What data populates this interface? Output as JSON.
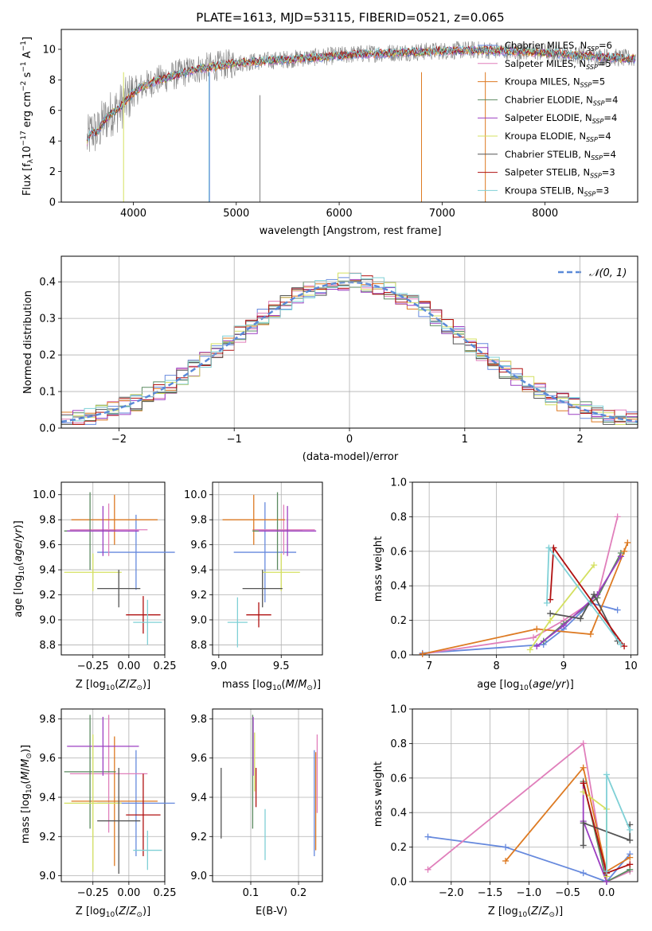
{
  "chart_data": [
    {
      "type": "line",
      "id": "spectrum",
      "title": "PLATE=1613, MJD=53115, FIBERID=0521, z=0.065",
      "xlabel": "wavelength [Angstrom, rest frame]",
      "ylabel": "Flux [fλ10⁻¹⁷ erg cm⁻² s⁻¹ A⁻¹]",
      "xlim": [
        3300,
        8900
      ],
      "ylim": [
        0,
        11.3
      ],
      "xticks": [
        4000,
        5000,
        6000,
        7000,
        8000
      ],
      "yticks": [
        0,
        2,
        4,
        6,
        8,
        10
      ],
      "grid": false,
      "legend_position": "right",
      "legend": [
        "Chabrier MILES, N_SSP=6",
        "Salpeter MILES, N_SSP=5",
        "Kroupa MILES, N_SSP=5",
        "Chabrier ELODIE, N_SSP=4",
        "Salpeter ELODIE, N_SSP=4",
        "Kroupa ELODIE, N_SSP=4",
        "Chabrier STELIB, N_SSP=4",
        "Salpeter STELIB, N_SSP=3",
        "Kroupa STELIB, N_SSP=3"
      ],
      "observed_trend": {
        "x": [
          3550,
          3600,
          3650,
          3700,
          3750,
          3800,
          3850,
          3900,
          3950,
          4000,
          4100,
          4200,
          4300,
          4400,
          4500,
          4600,
          4700,
          4800,
          4900,
          5000,
          5200,
          5400,
          5600,
          5800,
          6000,
          6200,
          6400,
          6600,
          6800,
          7000,
          7200,
          7400,
          7600,
          7800,
          8000,
          8200,
          8400,
          8600,
          8800
        ],
        "y": [
          4.0,
          4.7,
          4.5,
          5.2,
          5.6,
          5.9,
          6.1,
          6.4,
          6.8,
          7.2,
          7.6,
          7.9,
          8.1,
          8.3,
          8.5,
          8.7,
          8.8,
          8.9,
          9.0,
          9.1,
          9.2,
          9.3,
          9.4,
          9.5,
          9.6,
          9.7,
          9.75,
          9.8,
          9.85,
          9.9,
          9.95,
          9.95,
          9.9,
          9.85,
          9.8,
          9.7,
          9.6,
          9.5,
          9.4
        ]
      }
    },
    {
      "type": "histogram",
      "id": "residuals",
      "xlabel": "(data-model)/error",
      "ylabel": "Normed distribution",
      "xlim": [
        -2.5,
        2.5
      ],
      "ylim": [
        0,
        0.47
      ],
      "xticks": [
        -2,
        -1,
        0,
        1,
        2
      ],
      "yticks": [
        0.0,
        0.1,
        0.2,
        0.3,
        0.4
      ],
      "grid": true,
      "legend_position": "top-right",
      "reference_curve": "𝒩(0, 1)",
      "bin_width": 0.1,
      "approx_bin_heights": [
        0.02,
        0.025,
        0.03,
        0.035,
        0.045,
        0.05,
        0.06,
        0.07,
        0.08,
        0.09,
        0.1,
        0.12,
        0.13,
        0.15,
        0.17,
        0.19,
        0.2,
        0.22,
        0.24,
        0.26,
        0.28,
        0.3,
        0.32,
        0.34,
        0.36,
        0.37,
        0.39,
        0.4,
        0.41,
        0.41,
        0.4,
        0.4,
        0.39,
        0.38,
        0.37,
        0.35,
        0.33,
        0.31,
        0.29,
        0.27,
        0.24,
        0.22,
        0.2,
        0.18,
        0.16,
        0.14,
        0.12,
        0.1,
        0.08,
        0.07
      ]
    },
    {
      "type": "scatter",
      "id": "age-vs-Z",
      "xlabel": "Z [log₁₀(Z/Z⊙)]",
      "ylabel": "age  [log₁₀(age/yr)]",
      "xlim": [
        -0.47,
        0.25
      ],
      "ylim": [
        8.72,
        10.1
      ],
      "xticks": [
        -0.25,
        0.0,
        0.25
      ],
      "yticks": [
        8.8,
        9.0,
        9.2,
        9.4,
        9.6,
        9.8,
        10.0
      ],
      "grid": true,
      "points": [
        {
          "x": 0.05,
          "xerr": 0.27,
          "y": 9.54,
          "yerr": 0.3,
          "c": "#6689dd"
        },
        {
          "x": -0.14,
          "xerr": 0.27,
          "y": 9.72,
          "yerr": 0.21,
          "c": "#e07fbb"
        },
        {
          "x": -0.1,
          "xerr": 0.3,
          "y": 9.8,
          "yerr": 0.2,
          "c": "#dd7a22"
        },
        {
          "x": -0.27,
          "xerr": 0.18,
          "y": 9.71,
          "yerr": 0.31,
          "c": "#5b8a60"
        },
        {
          "x": -0.18,
          "xerr": 0.25,
          "y": 9.71,
          "yerr": 0.2,
          "c": "#9c3fc2"
        },
        {
          "x": -0.25,
          "xerr": 0.2,
          "y": 9.38,
          "yerr": 0.15,
          "c": "#d4e060"
        },
        {
          "x": -0.07,
          "xerr": 0.15,
          "y": 9.25,
          "yerr": 0.15,
          "c": "#555555"
        },
        {
          "x": 0.1,
          "xerr": 0.12,
          "y": 9.04,
          "yerr": 0.15,
          "c": "#b01010"
        },
        {
          "x": 0.13,
          "xerr": 0.1,
          "y": 8.98,
          "yerr": 0.18,
          "c": "#7fd0d6"
        }
      ]
    },
    {
      "type": "scatter",
      "id": "age-vs-mass",
      "xlabel": "mass [log₁₀(M/M⊙)]",
      "ylabel": "",
      "xlim": [
        8.95,
        9.83
      ],
      "ylim": [
        8.72,
        10.1
      ],
      "xticks": [
        9.0,
        9.5
      ],
      "yticks": [
        8.8,
        9.0,
        9.2,
        9.4,
        9.6,
        9.8,
        10.0
      ],
      "grid": true,
      "points": [
        {
          "x": 9.37,
          "xerr": 0.25,
          "y": 9.54,
          "yerr": 0.4,
          "c": "#6689dd"
        },
        {
          "x": 9.52,
          "xerr": 0.25,
          "y": 9.72,
          "yerr": 0.2,
          "c": "#e07fbb"
        },
        {
          "x": 9.28,
          "xerr": 0.25,
          "y": 9.8,
          "yerr": 0.2,
          "c": "#dd7a22"
        },
        {
          "x": 9.47,
          "xerr": 0.2,
          "y": 9.71,
          "yerr": 0.31,
          "c": "#5b8a60"
        },
        {
          "x": 9.55,
          "xerr": 0.23,
          "y": 9.71,
          "yerr": 0.2,
          "c": "#9c3fc2"
        },
        {
          "x": 9.5,
          "xerr": 0.15,
          "y": 9.38,
          "yerr": 0.15,
          "c": "#d4e060"
        },
        {
          "x": 9.35,
          "xerr": 0.16,
          "y": 9.25,
          "yerr": 0.15,
          "c": "#555555"
        },
        {
          "x": 9.32,
          "xerr": 0.1,
          "y": 9.04,
          "yerr": 0.1,
          "c": "#b01010"
        },
        {
          "x": 9.15,
          "xerr": 0.08,
          "y": 8.98,
          "yerr": 0.2,
          "c": "#7fd0d6"
        }
      ]
    },
    {
      "type": "line",
      "id": "mass-weight-vs-age",
      "xlabel": "age  [log₁₀(age/yr)]",
      "ylabel": "mass weight",
      "xlim": [
        6.75,
        10.1
      ],
      "ylim": [
        0,
        1.0
      ],
      "xticks": [
        7,
        8,
        9,
        10
      ],
      "yticks": [
        0.0,
        0.2,
        0.4,
        0.6,
        0.8,
        1.0
      ],
      "grid": true,
      "series": [
        {
          "c": "#6689dd",
          "x": [
            6.9,
            8.7,
            9.0,
            9.4,
            9.8
          ],
          "y": [
            0.01,
            0.06,
            0.15,
            0.3,
            0.26
          ]
        },
        {
          "c": "#e07fbb",
          "x": [
            6.9,
            8.55,
            9.0,
            9.5,
            9.8
          ],
          "y": [
            0.005,
            0.1,
            0.2,
            0.33,
            0.8
          ]
        },
        {
          "c": "#dd7a22",
          "x": [
            6.9,
            8.6,
            9.4,
            9.9,
            9.95
          ],
          "y": [
            0.005,
            0.15,
            0.12,
            0.6,
            0.65
          ]
        },
        {
          "c": "#5b8a60",
          "x": [
            8.7,
            9.0,
            9.5,
            9.85
          ],
          "y": [
            0.08,
            0.18,
            0.33,
            0.59
          ]
        },
        {
          "c": "#9c3fc2",
          "x": [
            8.6,
            9.0,
            9.5,
            9.85
          ],
          "y": [
            0.05,
            0.17,
            0.35,
            0.57
          ]
        },
        {
          "c": "#d4e060",
          "x": [
            8.5,
            8.8,
            9.45
          ],
          "y": [
            0.03,
            0.2,
            0.52
          ]
        },
        {
          "c": "#555555",
          "x": [
            8.8,
            9.25,
            9.45,
            9.8
          ],
          "y": [
            0.24,
            0.21,
            0.35,
            0.08
          ]
        },
        {
          "c": "#b01010",
          "x": [
            8.8,
            8.85,
            9.9
          ],
          "y": [
            0.32,
            0.62,
            0.05
          ]
        },
        {
          "c": "#7fd0d6",
          "x": [
            8.75,
            8.78,
            9.85
          ],
          "y": [
            0.3,
            0.62,
            0.06
          ]
        }
      ]
    },
    {
      "type": "scatter",
      "id": "mass-vs-Z",
      "xlabel": "Z [log₁₀(Z/Z⊙)]",
      "ylabel": "mass [log₁₀(M/M⊙)]",
      "xlim": [
        -0.47,
        0.25
      ],
      "ylim": [
        8.97,
        9.85
      ],
      "xticks": [
        -0.25,
        0.0,
        0.25
      ],
      "yticks": [
        9.0,
        9.2,
        9.4,
        9.6,
        9.8
      ],
      "grid": true,
      "points": [
        {
          "x": 0.05,
          "xerr": 0.27,
          "y": 9.37,
          "yerr": 0.27,
          "c": "#6689dd"
        },
        {
          "x": -0.14,
          "xerr": 0.27,
          "y": 9.52,
          "yerr": 0.3,
          "c": "#e07fbb"
        },
        {
          "x": -0.1,
          "xerr": 0.3,
          "y": 9.38,
          "yerr": 0.33,
          "c": "#dd7a22"
        },
        {
          "x": -0.27,
          "xerr": 0.18,
          "y": 9.53,
          "yerr": 0.29,
          "c": "#5b8a60"
        },
        {
          "x": -0.18,
          "xerr": 0.25,
          "y": 9.66,
          "yerr": 0.15,
          "c": "#9c3fc2"
        },
        {
          "x": -0.25,
          "xerr": 0.2,
          "y": 9.37,
          "yerr": 0.35,
          "c": "#d4e060"
        },
        {
          "x": -0.07,
          "xerr": 0.15,
          "y": 9.28,
          "yerr": 0.27,
          "c": "#555555"
        },
        {
          "x": 0.1,
          "xerr": 0.12,
          "y": 9.31,
          "yerr": 0.21,
          "c": "#b01010"
        },
        {
          "x": 0.13,
          "xerr": 0.1,
          "y": 9.13,
          "yerr": 0.1,
          "c": "#7fd0d6"
        }
      ]
    },
    {
      "type": "scatter",
      "id": "mass-vs-ebv",
      "xlabel": "E(B-V)",
      "ylabel": "",
      "xlim": [
        0.02,
        0.25
      ],
      "ylim": [
        8.97,
        9.85
      ],
      "xticks": [
        0.1,
        0.2
      ],
      "yticks": [
        9.0,
        9.2,
        9.4,
        9.6,
        9.8
      ],
      "grid": true,
      "points": [
        {
          "x": 0.233,
          "y": 9.37,
          "yerr": 0.27,
          "c": "#6689dd"
        },
        {
          "x": 0.239,
          "y": 9.52,
          "yerr": 0.2,
          "c": "#e07fbb"
        },
        {
          "x": 0.236,
          "y": 9.38,
          "yerr": 0.25,
          "c": "#dd7a22"
        },
        {
          "x": 0.104,
          "y": 9.53,
          "yerr": 0.29,
          "c": "#5b8a60"
        },
        {
          "x": 0.105,
          "y": 9.66,
          "yerr": 0.15,
          "c": "#9c3fc2"
        },
        {
          "x": 0.108,
          "y": 9.58,
          "yerr": 0.15,
          "c": "#d4e060"
        },
        {
          "x": 0.038,
          "y": 9.37,
          "yerr": 0.18,
          "c": "#555555"
        },
        {
          "x": 0.111,
          "y": 9.45,
          "yerr": 0.1,
          "c": "#b01010"
        },
        {
          "x": 0.13,
          "y": 9.21,
          "yerr": 0.13,
          "c": "#7fd0d6"
        }
      ]
    },
    {
      "type": "line",
      "id": "mass-weight-vs-Z",
      "xlabel": "Z [log₁₀(Z/Z⊙)]",
      "ylabel": "mass weight",
      "xlim": [
        -2.5,
        0.4
      ],
      "ylim": [
        0,
        1.0
      ],
      "xticks": [
        -2.0,
        -1.5,
        -1.0,
        -0.5,
        0.0
      ],
      "yticks": [
        0.0,
        0.2,
        0.4,
        0.6,
        0.8,
        1.0
      ],
      "grid": true,
      "series": [
        {
          "c": "#6689dd",
          "x": [
            -2.3,
            -1.3,
            -0.3,
            0.0,
            0.3
          ],
          "y": [
            0.26,
            0.2,
            0.05,
            0.0,
            0.16
          ]
        },
        {
          "c": "#e07fbb",
          "x": [
            -2.3,
            -0.3,
            0.0,
            0.3
          ],
          "y": [
            0.07,
            0.8,
            0.0,
            0.06
          ]
        },
        {
          "c": "#dd7a22",
          "x": [
            -1.3,
            -0.3,
            0.0,
            0.3
          ],
          "y": [
            0.12,
            0.66,
            0.06,
            0.14
          ]
        },
        {
          "c": "#5b8a60",
          "x": [
            -0.3,
            0.0,
            0.3
          ],
          "y": [
            0.58,
            0.0,
            0.07
          ]
        },
        {
          "c": "#9c3fc2",
          "x": [
            -0.3,
            -0.3,
            0.0,
            0.0
          ],
          "y": [
            0.57,
            0.35,
            0.0,
            0.05
          ]
        },
        {
          "c": "#d4e060",
          "x": [
            -0.3,
            0.0,
            0.0
          ],
          "y": [
            0.52,
            0.42,
            0.03
          ]
        },
        {
          "c": "#555555",
          "x": [
            -0.3,
            -0.3,
            0.3,
            0.3
          ],
          "y": [
            0.21,
            0.34,
            0.24,
            0.33
          ]
        },
        {
          "c": "#b01010",
          "x": [
            -0.3,
            0.0,
            0.3
          ],
          "y": [
            0.57,
            0.05,
            0.1
          ]
        },
        {
          "c": "#7fd0d6",
          "x": [
            0.0,
            0.0,
            0.3
          ],
          "y": [
            0.06,
            0.62,
            0.3
          ]
        }
      ]
    }
  ],
  "series_colors": [
    "#6689dd",
    "#e07fbb",
    "#dd7a22",
    "#5b8a60",
    "#9c3fc2",
    "#d4e060",
    "#555555",
    "#b01010",
    "#7fd0d6"
  ],
  "spectrum_data_color": "#808080"
}
